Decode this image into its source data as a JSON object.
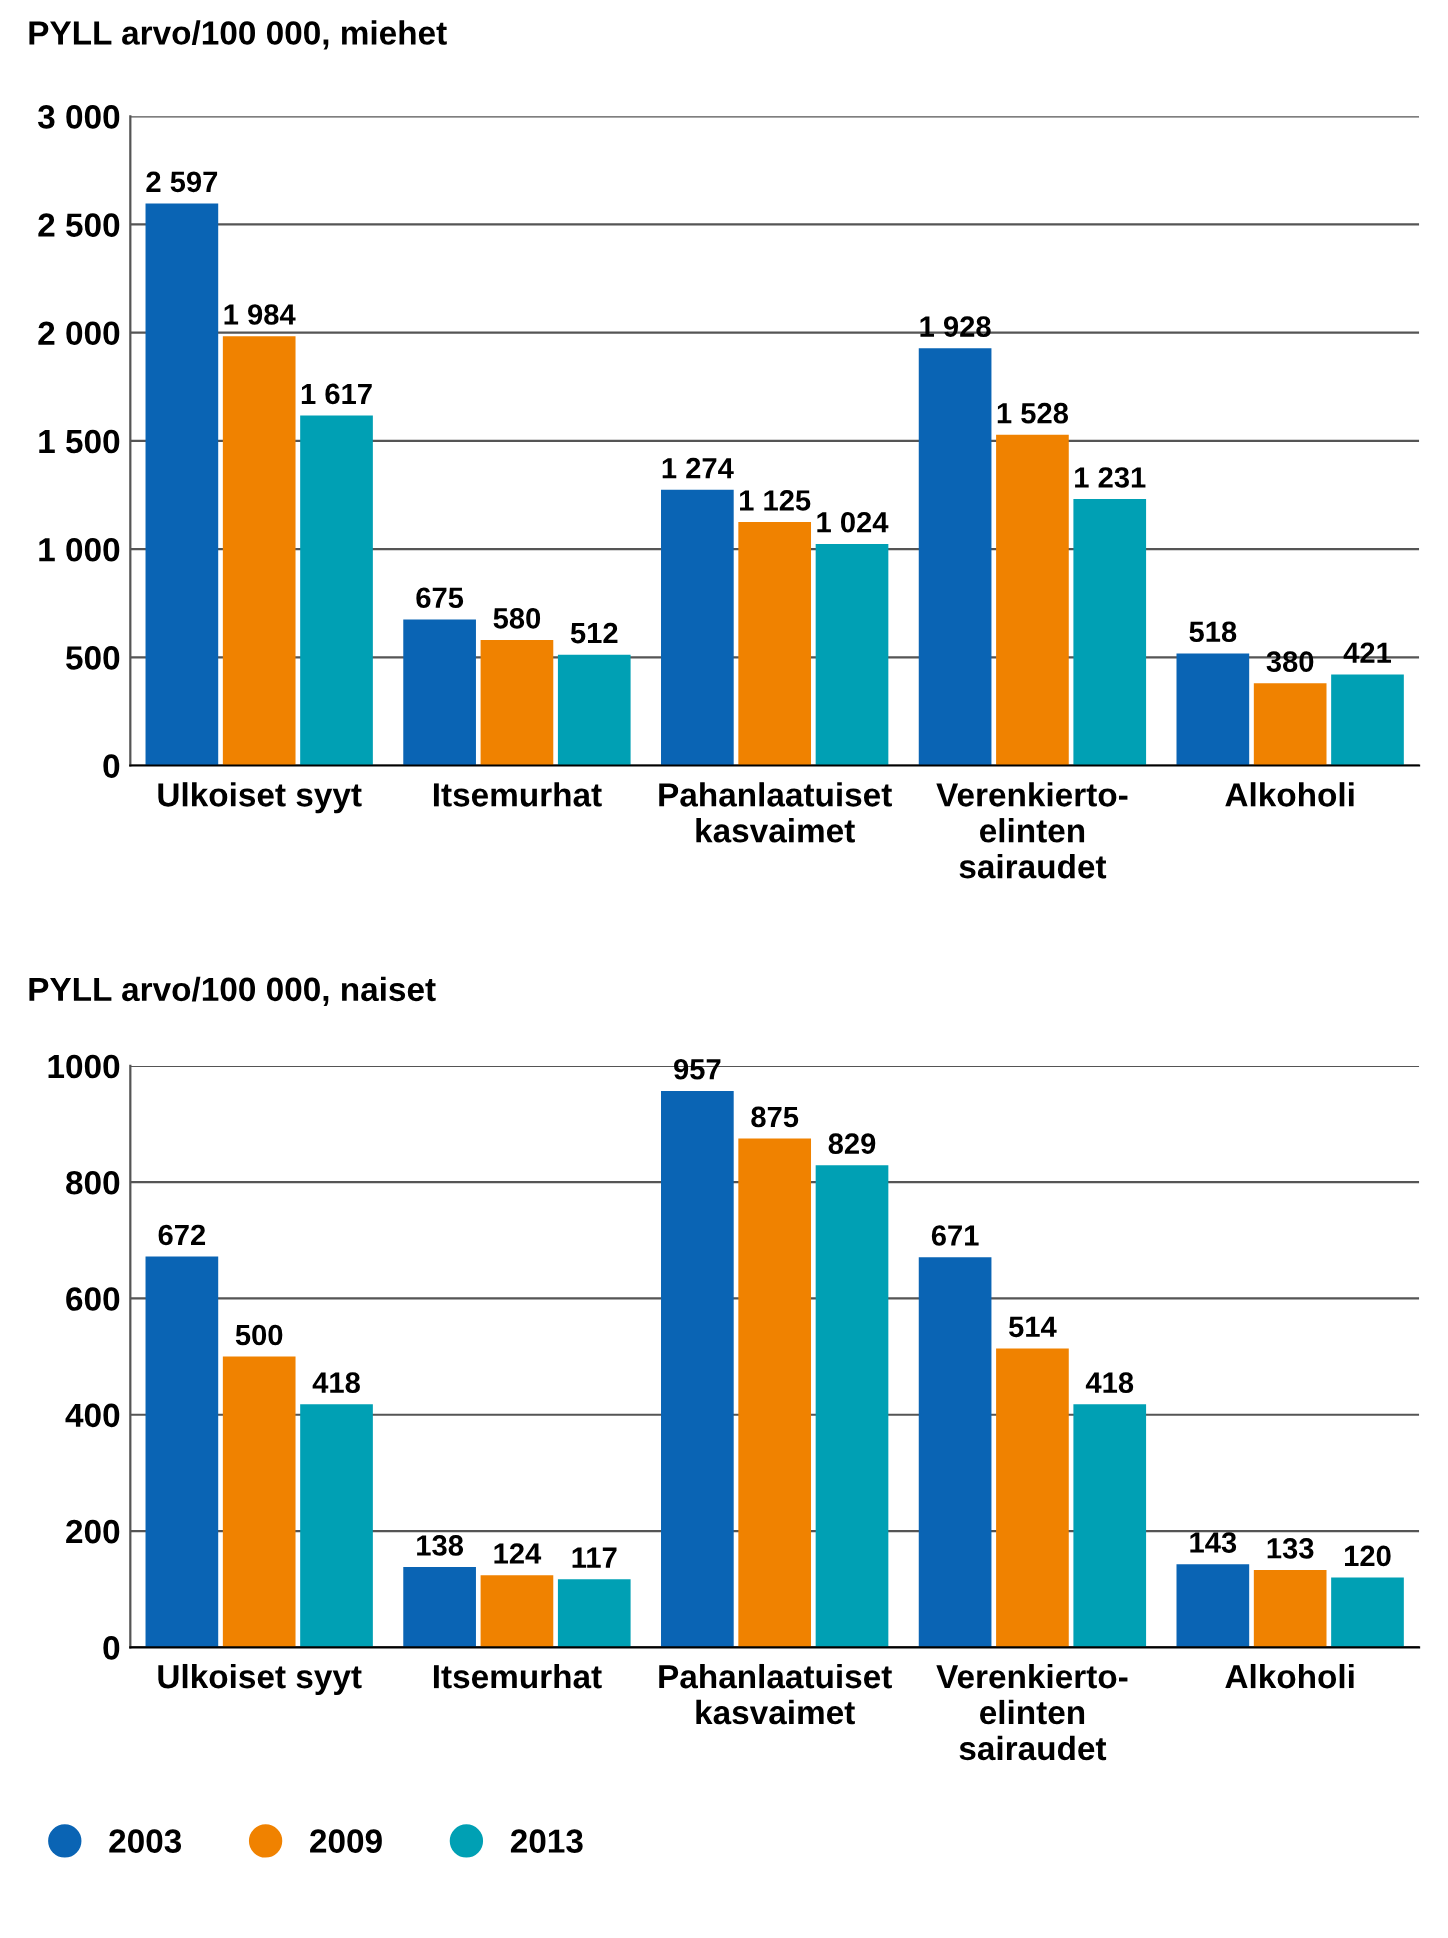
{
  "chart_data": [
    {
      "type": "bar",
      "title": "PYLL arvo/100 000, miehet",
      "categories": [
        "Ulkoiset syyt",
        "Itsemurhat",
        "Pahanlaatuiset\nkasvaimet",
        "Verenkierto-\nelinten\nsairaudet",
        "Alkoholi"
      ],
      "series": [
        {
          "color": "#0a64b4",
          "values": [
            2597,
            675,
            1274,
            1928,
            518
          ],
          "value_labels": [
            "2 597",
            "675",
            "1 274",
            "1 928",
            "518"
          ]
        },
        {
          "color": "#f08200",
          "values": [
            1984,
            580,
            1125,
            1528,
            380
          ],
          "value_labels": [
            "1 984",
            "580",
            "1 125",
            "1 528",
            "380"
          ]
        },
        {
          "color": "#00a0b4",
          "values": [
            1617,
            512,
            1024,
            1231,
            421
          ],
          "value_labels": [
            "1 617",
            "512",
            "1 024",
            "1 231",
            "421"
          ]
        }
      ],
      "ylim": [
        0,
        3000
      ],
      "yticks": [
        0,
        500,
        {
          "value": 1000,
          "label": "1 000"
        },
        {
          "value": 1500,
          "label": "1 500"
        },
        {
          "value": 2000,
          "label": "2 000"
        },
        {
          "value": 2500,
          "label": "2 500"
        },
        {
          "value": 3000,
          "label": "3 000"
        }
      ],
      "grid": "y",
      "legend": false
    },
    {
      "type": "bar",
      "title": "PYLL arvo/100 000, naiset",
      "categories": [
        "Ulkoiset syyt",
        "Itsemurhat",
        "Pahanlaatuiset\nkasvaimet",
        "Verenkierto-\nelinten\nsairaudet",
        "Alkoholi"
      ],
      "series": [
        {
          "name": "2003",
          "color": "#0a64b4",
          "values": [
            672,
            138,
            957,
            671,
            143
          ]
        },
        {
          "name": "2009",
          "color": "#f08200",
          "values": [
            500,
            124,
            875,
            514,
            133
          ]
        },
        {
          "name": "2013",
          "color": "#00a0b4",
          "values": [
            418,
            117,
            829,
            418,
            120
          ]
        }
      ],
      "ylim": [
        0,
        1000
      ],
      "yticks": [
        0,
        200,
        400,
        600,
        800,
        1000
      ],
      "grid": "y",
      "legend": "bottom",
      "data_labels": true
    }
  ]
}
